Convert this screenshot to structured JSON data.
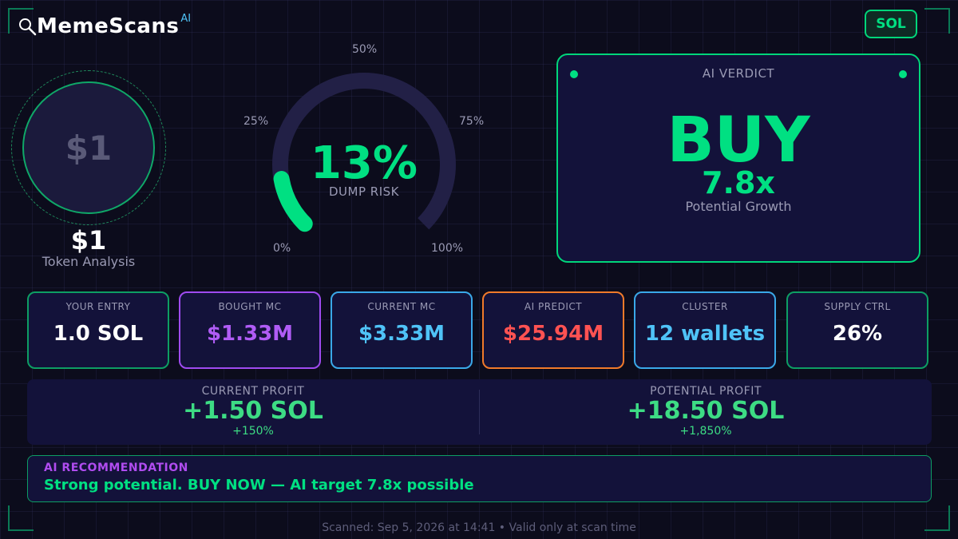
{
  "header": {
    "app_name": "MemeScans",
    "app_superscript": "AI",
    "chain_badge": "SOL"
  },
  "token": {
    "avatar_text": "$1",
    "symbol": "$1",
    "subtitle": "Token Analysis"
  },
  "gauge": {
    "value_text": "13%",
    "value": 13,
    "label": "DUMP RISK",
    "ticks": {
      "t0": "0%",
      "t25": "25%",
      "t50": "50%",
      "t75": "75%",
      "t100": "100%"
    },
    "fill_color": "#00e082",
    "track_color": "#222046"
  },
  "verdict": {
    "title": "AI VERDICT",
    "action": "BUY",
    "multiplier": "7.8x",
    "subtitle": "Potential Growth"
  },
  "metrics": [
    {
      "label": "YOUR ENTRY",
      "value": "1.0 SOL",
      "border_color": "#0d9e64",
      "value_color": "#ffffff"
    },
    {
      "label": "BOUGHT MC",
      "value": "$1.33M",
      "border_color": "#9f4bf0",
      "value_color": "#b05cf5"
    },
    {
      "label": "CURRENT MC",
      "value": "$3.33M",
      "border_color": "#3aa8e8",
      "value_color": "#4fc3f7"
    },
    {
      "label": "AI PREDICT",
      "value": "$25.94M",
      "border_color": "#f07a2a",
      "value_color": "#ff5252"
    },
    {
      "label": "CLUSTER",
      "value": "12 wallets",
      "border_color": "#3aa8e8",
      "value_color": "#4fc3f7"
    },
    {
      "label": "SUPPLY CTRL",
      "value": "26%",
      "border_color": "#0d9e64",
      "value_color": "#ffffff"
    }
  ],
  "profit": {
    "current": {
      "label": "CURRENT PROFIT",
      "value": "+1.50 SOL",
      "pct": "+150%"
    },
    "potential": {
      "label": "POTENTIAL PROFIT",
      "value": "+18.50 SOL",
      "pct": "+1,850%"
    }
  },
  "recommendation": {
    "title": "AI RECOMMENDATION",
    "text": "Strong potential. BUY NOW — AI target 7.8x possible"
  },
  "footer": {
    "text": "Scanned: Sep 5, 2026 at 14:41  •  Valid only at scan time"
  },
  "icons": {
    "logo": "magnifier-icon"
  }
}
